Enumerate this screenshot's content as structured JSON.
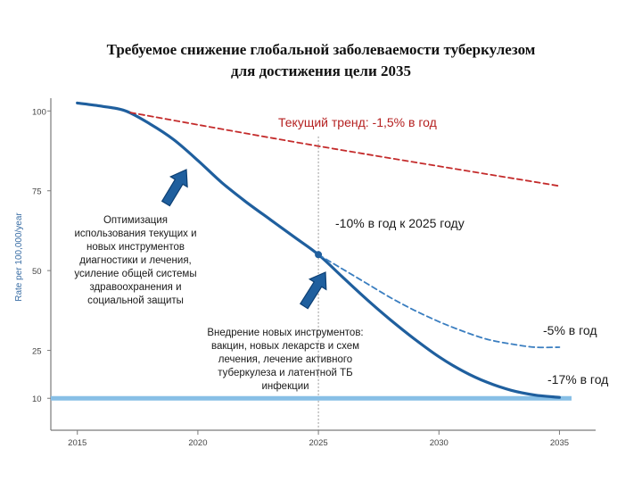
{
  "title": {
    "line1": "Требуемое снижение глобальной заболеваемости туберкулезом",
    "line2": "для достижения цели 2035"
  },
  "chart_data": {
    "type": "line",
    "ylabel": "Rate per 100,000/year",
    "xlim": [
      2013.9,
      2036.5
    ],
    "ylim": [
      0,
      104
    ],
    "x_ticks": [
      "2015",
      "2020",
      "2025",
      "2030",
      "2035"
    ],
    "y_ticks": [
      "10",
      "25",
      "50",
      "75",
      "100"
    ],
    "series": [
      {
        "role": "required",
        "color": "#1f5f9e",
        "style": "solid",
        "points": [
          [
            2015,
            102.5
          ],
          [
            2016,
            101.5
          ],
          [
            2017,
            100
          ],
          [
            2018,
            96
          ],
          [
            2019,
            91
          ],
          [
            2020,
            84.5
          ],
          [
            2021,
            77.5
          ],
          [
            2022,
            71.5
          ],
          [
            2023,
            66
          ],
          [
            2024,
            60.5
          ],
          [
            2025,
            55
          ],
          [
            2026,
            48
          ],
          [
            2027,
            41
          ],
          [
            2028,
            34.5
          ],
          [
            2029,
            28.5
          ],
          [
            2030,
            23
          ],
          [
            2031,
            18.5
          ],
          [
            2032,
            15
          ],
          [
            2033,
            12.5
          ],
          [
            2034,
            11
          ],
          [
            2035,
            10.3
          ]
        ]
      },
      {
        "role": "current-trend",
        "color": "#c42b2b",
        "style": "dashed",
        "points": [
          [
            2017.2,
            99.5
          ],
          [
            2025,
            89
          ],
          [
            2035,
            76.5
          ]
        ]
      },
      {
        "role": "branch-5",
        "color": "#3a7ec0",
        "style": "dashed",
        "points": [
          [
            2025,
            55
          ],
          [
            2026,
            50.5
          ],
          [
            2027,
            46
          ],
          [
            2028,
            41.5
          ],
          [
            2029,
            37.5
          ],
          [
            2030,
            34
          ],
          [
            2031,
            31
          ],
          [
            2032,
            28.5
          ],
          [
            2033,
            27
          ],
          [
            2034,
            26
          ],
          [
            2035,
            26
          ]
        ]
      }
    ],
    "target_line": {
      "y": 10,
      "color": "#87bfe6"
    },
    "marker_year": 2025,
    "marker_point": [
      2025,
      55
    ],
    "annotations": {
      "current_trend": "Текущий тренд: -1,5% в год",
      "rate_10": "-10% в год  к 2025 году",
      "rate_5": "-5% в год",
      "rate_17": "-17% в год",
      "note_left": [
        "Оптимизация",
        "использования текущих и",
        "новых инструментов",
        "диагностики и лечения,",
        "усиление общей системы",
        "здравоохранения и",
        "социальной защиты"
      ],
      "note_mid": [
        "Внедрение новых инструментов:",
        "вакцин, новых лекарств и схем",
        "лечения, лечение активного",
        "туберкулеза и латентной ТБ",
        "инфекции"
      ]
    }
  }
}
